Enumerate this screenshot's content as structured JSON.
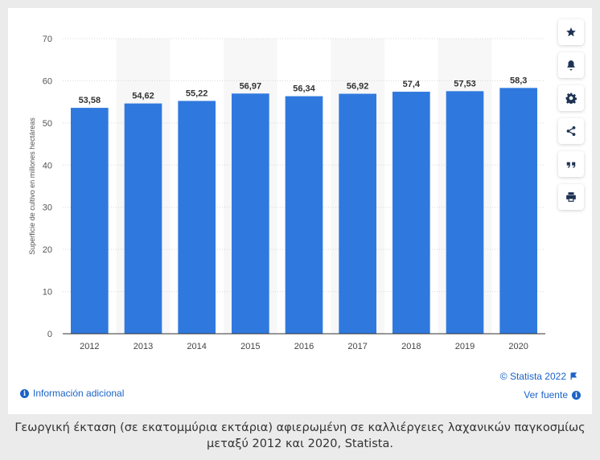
{
  "chart_data": {
    "type": "bar",
    "categories": [
      "2012",
      "2013",
      "2014",
      "2015",
      "2016",
      "2017",
      "2018",
      "2019",
      "2020"
    ],
    "values": [
      53.58,
      54.62,
      55.22,
      56.97,
      56.34,
      56.92,
      57.4,
      57.53,
      58.3
    ],
    "value_labels": [
      "53,58",
      "54,62",
      "55,22",
      "56,97",
      "56,34",
      "56,92",
      "57,4",
      "57,53",
      "58,3"
    ],
    "title": "",
    "xlabel": "",
    "ylabel": "Superficie de cultivo en millones hectáreas",
    "ylim": [
      0,
      70
    ],
    "yticks": [
      0,
      10,
      20,
      30,
      40,
      50,
      60,
      70
    ],
    "grid": true,
    "bar_color": "#2f79de",
    "alt_band_color": "#f7f7f7"
  },
  "toolbar": {
    "icons": [
      "star-icon",
      "bell-icon",
      "gear-icon",
      "share-icon",
      "quote-icon",
      "print-icon"
    ]
  },
  "footer": {
    "credits": "© Statista 2022",
    "more_info": "Información adicional",
    "source": "Ver fuente"
  },
  "caption": "Γεωργική έκταση (σε εκατομμύρια εκτάρια) αφιερωμένη σε καλλιέργειες λαχανικών παγκοσμίως μεταξύ 2012 και 2020, Statista.",
  "colors": {
    "accent": "#1a63c7",
    "background": "#ebebeb",
    "card": "#ffffff"
  }
}
